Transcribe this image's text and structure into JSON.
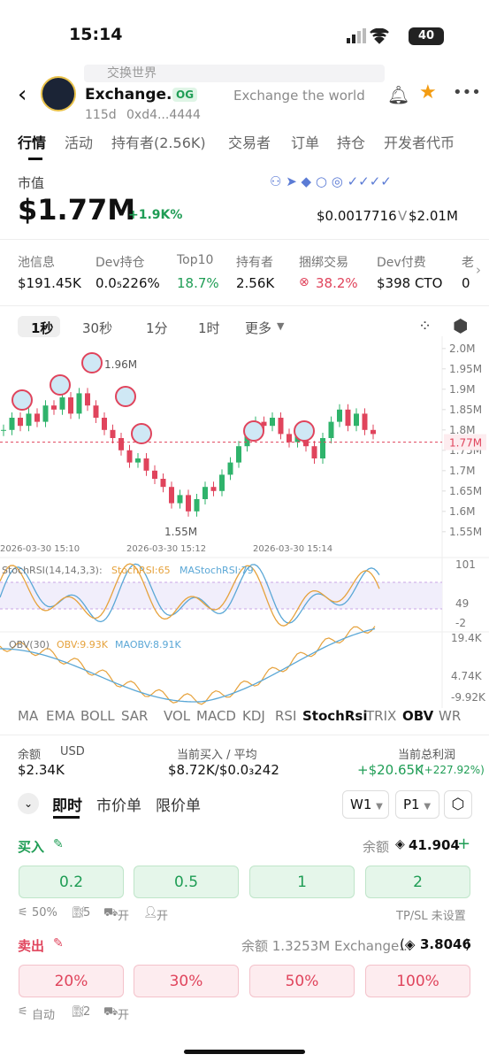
{
  "status": {
    "time": "15:14",
    "battery": "40"
  },
  "header": {
    "search": "交换世界",
    "name": "Exchange...",
    "badge": "OG",
    "slogan": "Exchange the world",
    "age": "115d",
    "address": "0xd4...4444"
  },
  "tabs": [
    "行情",
    "活动",
    "持有者(2.56K)",
    "交易者",
    "订单",
    "持仓",
    "开发者代币"
  ],
  "market": {
    "label": "市值",
    "cap": "$1.77M",
    "change": "+1.9K%",
    "price": "$0.0017716",
    "volume_label": "V",
    "volume": "$2.01M"
  },
  "stats": [
    {
      "label": "池信息",
      "value": "$191.45K"
    },
    {
      "label": "Dev持仓",
      "value": "0.0₅226%"
    },
    {
      "label": "Top10",
      "value": "18.7%"
    },
    {
      "label": "持有者",
      "value": "2.56K"
    },
    {
      "label": "捆绑交易",
      "value": "38.2%"
    },
    {
      "label": "Dev付费",
      "value": "$398 CTO"
    },
    {
      "label": "老",
      "value": "0"
    }
  ],
  "intervals": [
    "1秒",
    "30秒",
    "1分",
    "1时",
    "更多"
  ],
  "price_chart": {
    "ylim": [
      1.53,
      2.03
    ],
    "yticks": [
      {
        "value": 2.0,
        "label": "2.0M"
      },
      {
        "value": 1.95,
        "label": "1.95M"
      },
      {
        "value": 1.9,
        "label": "1.9M"
      },
      {
        "value": 1.85,
        "label": "1.85M"
      },
      {
        "value": 1.8,
        "label": "1.8M"
      },
      {
        "value": 1.75,
        "label": "1.75M"
      },
      {
        "value": 1.7,
        "label": "1.7M"
      },
      {
        "value": 1.65,
        "label": "1.65M"
      },
      {
        "value": 1.6,
        "label": "1.6M"
      },
      {
        "value": 1.55,
        "label": "1.55M"
      }
    ],
    "current": {
      "value": 1.77,
      "label": "1.77M"
    },
    "high": {
      "value": 1.96,
      "label": "1.96M"
    },
    "low": {
      "value": 1.55,
      "label": "1.55M"
    },
    "closes": [
      1.8,
      1.83,
      1.81,
      1.84,
      1.82,
      1.86,
      1.85,
      1.88,
      1.84,
      1.89,
      1.86,
      1.83,
      1.8,
      1.78,
      1.75,
      1.72,
      1.73,
      1.7,
      1.68,
      1.66,
      1.62,
      1.64,
      1.6,
      1.63,
      1.66,
      1.65,
      1.69,
      1.72,
      1.76,
      1.8,
      1.82,
      1.81,
      1.83,
      1.79,
      1.77,
      1.8,
      1.76,
      1.73,
      1.78,
      1.82,
      1.85,
      1.81,
      1.84,
      1.8,
      1.79
    ],
    "times": [
      "2026-03-30 15:10",
      "2026-03-30 15:12",
      "2026-03-30 15:14"
    ]
  },
  "stoch": {
    "label": "StochRSI(14,14,3,3):",
    "k": "StochRSI:65",
    "d": "MAStochRSI:79",
    "axis": [
      "101",
      "49",
      "-2"
    ]
  },
  "obv": {
    "label": "OBV(30)",
    "value": "OBV:9.93K",
    "ma": "MAOBV:8.91K",
    "axis": [
      "19.4K",
      "4.74K",
      "-9.92K"
    ]
  },
  "indicators": [
    "MA",
    "EMA",
    "BOLL",
    "SAR",
    "VOL",
    "MACD",
    "KDJ",
    "RSI",
    "StochRsi",
    "TRIX",
    "OBV",
    "WR"
  ],
  "balance": {
    "label": "余额",
    "currency": "USD",
    "value": "$2.34K",
    "buy_label": "当前买入 / 平均",
    "buy_value": "$8.72K/$0.0₃242",
    "profit_label": "当前总利润",
    "profit": "+$20.65K",
    "profit_pct": "(+227.92%)"
  },
  "order_tabs": [
    "即时",
    "市价单",
    "限价单"
  ],
  "window": "W1",
  "preset": "P1",
  "buy": {
    "title": "买入",
    "balance_label": "余额",
    "balance": "41.904",
    "amounts": [
      "0.2",
      "0.5",
      "1",
      "2"
    ],
    "options": [
      "50%",
      "5",
      "开",
      "开"
    ],
    "tpsl": "TP/SL 未设置"
  },
  "sell": {
    "title": "卖出",
    "balance": "余额 1.3253M Exchange...",
    "value": "3.8046",
    "amounts": [
      "20%",
      "30%",
      "50%",
      "100%"
    ],
    "options": [
      "自动",
      "2",
      "开"
    ]
  }
}
